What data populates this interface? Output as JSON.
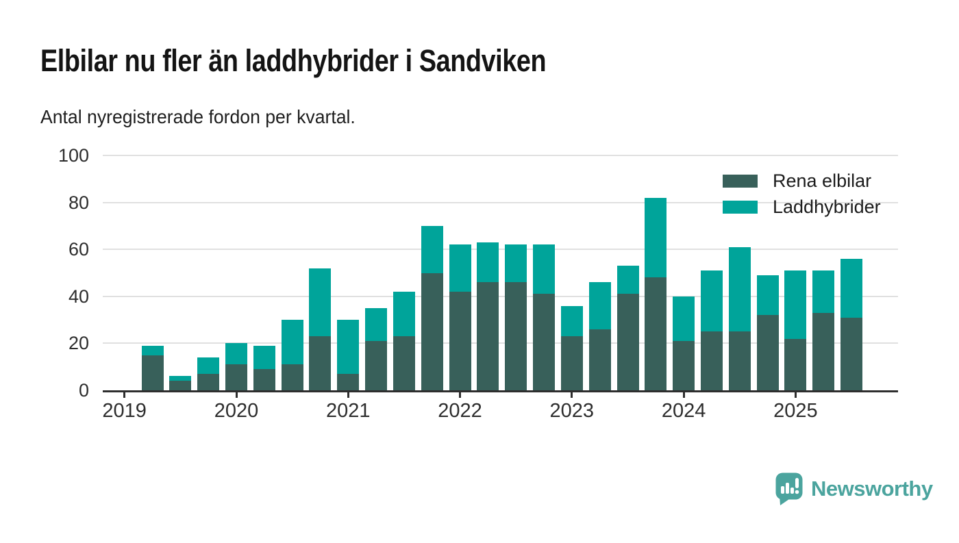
{
  "title": "Elbilar nu fler än laddhybrider i Sandviken",
  "subtitle": "Antal nyregistrerade fordon per kvartal.",
  "brand": {
    "name": "Newsworthy"
  },
  "colors": {
    "rena_elbilar": "#38605a",
    "laddhybrider": "#00a49a",
    "grid": "#e0e0e0",
    "axis": "#2e2e2e",
    "brand_teal": "#4ba49e"
  },
  "legend": {
    "items": [
      {
        "label": "Rena elbilar",
        "color": "#38605a"
      },
      {
        "label": "Laddhybrider",
        "color": "#00a49a"
      }
    ]
  },
  "chart_data": {
    "type": "bar",
    "stacked": true,
    "title": "Elbilar nu fler än laddhybrider i Sandviken",
    "subtitle": "Antal nyregistrerade fordon per kvartal.",
    "x": [
      "2019 Q1",
      "2019 Q2",
      "2019 Q3",
      "2019 Q4",
      "2020 Q1",
      "2020 Q2",
      "2020 Q3",
      "2020 Q4",
      "2021 Q1",
      "2021 Q2",
      "2021 Q3",
      "2021 Q4",
      "2022 Q1",
      "2022 Q2",
      "2022 Q3",
      "2022 Q4",
      "2023 Q1",
      "2023 Q2",
      "2023 Q3",
      "2023 Q4",
      "2024 Q1",
      "2024 Q2",
      "2024 Q3",
      "2024 Q4",
      "2025 Q1",
      "2025 Q2",
      "2025 Q3"
    ],
    "xticks": [
      "2019",
      "2020",
      "2021",
      "2022",
      "2023",
      "2024",
      "2025"
    ],
    "xticks_every": 4,
    "yticks": [
      0,
      20,
      40,
      60,
      80,
      100
    ],
    "ylim": [
      0,
      100
    ],
    "grid": true,
    "legend_position": "top-right",
    "series": [
      {
        "name": "Rena elbilar",
        "color": "#38605a",
        "values": [
          0,
          15,
          4,
          7,
          11,
          9,
          11,
          23,
          7,
          21,
          23,
          50,
          42,
          46,
          46,
          41,
          23,
          26,
          41,
          48,
          21,
          25,
          25,
          32,
          22,
          33,
          31
        ]
      },
      {
        "name": "Laddhybrider",
        "color": "#00a49a",
        "values": [
          0,
          4,
          2,
          7,
          9,
          10,
          19,
          29,
          23,
          14,
          19,
          20,
          20,
          17,
          16,
          21,
          13,
          20,
          12,
          34,
          19,
          26,
          36,
          17,
          29,
          18,
          25
        ]
      }
    ]
  }
}
